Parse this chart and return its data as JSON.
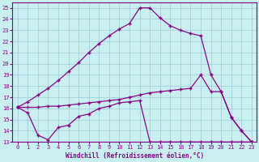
{
  "background_color": "#c8f0f0",
  "grid_color": "#a0c8d8",
  "line_color": "#880088",
  "xlabel": "Windchill (Refroidissement éolien,°C)",
  "xlim": [
    -0.5,
    23.5
  ],
  "ylim": [
    13,
    25.5
  ],
  "yticks": [
    13,
    14,
    15,
    16,
    17,
    18,
    19,
    20,
    21,
    22,
    23,
    24,
    25
  ],
  "xticks": [
    0,
    1,
    2,
    3,
    4,
    5,
    6,
    7,
    8,
    9,
    10,
    11,
    12,
    13,
    14,
    15,
    16,
    17,
    18,
    19,
    20,
    21,
    22,
    23
  ],
  "line1_x": [
    0,
    1,
    2,
    3,
    4,
    5,
    6,
    7,
    8,
    9,
    10,
    11,
    12,
    13,
    14,
    15,
    16,
    17,
    18,
    19,
    20,
    21,
    22,
    23
  ],
  "line1_y": [
    16.1,
    16.6,
    17.2,
    17.8,
    18.5,
    19.3,
    20.1,
    21.0,
    21.8,
    22.5,
    23.1,
    23.6,
    25.0,
    25.0,
    24.1,
    23.4,
    23.0,
    22.7,
    22.5,
    19.0,
    17.5,
    15.2,
    14.0,
    13.0
  ],
  "line2_x": [
    0,
    1,
    2,
    3,
    4,
    5,
    6,
    7,
    8,
    9,
    10,
    11,
    12,
    13,
    14,
    15,
    16,
    17,
    18,
    19,
    20,
    21,
    22,
    23
  ],
  "line2_y": [
    16.1,
    16.1,
    16.1,
    16.2,
    16.2,
    16.3,
    16.4,
    16.5,
    16.6,
    16.7,
    16.8,
    17.0,
    17.2,
    17.4,
    17.5,
    17.6,
    17.7,
    17.8,
    19.0,
    17.5,
    17.5,
    15.2,
    14.0,
    13.0
  ],
  "line3_x": [
    0,
    1,
    2,
    3,
    4,
    5,
    6,
    7,
    8,
    9,
    10,
    11,
    12,
    13,
    14,
    15,
    16,
    17,
    18,
    19,
    20,
    21,
    22,
    23
  ],
  "line3_y": [
    16.1,
    15.6,
    13.6,
    13.2,
    14.3,
    14.5,
    15.3,
    15.5,
    16.0,
    16.2,
    16.5,
    16.6,
    16.7,
    13.0,
    13.0,
    13.0,
    13.0,
    13.0,
    13.0,
    13.0,
    13.0,
    13.0,
    13.0,
    13.0
  ]
}
